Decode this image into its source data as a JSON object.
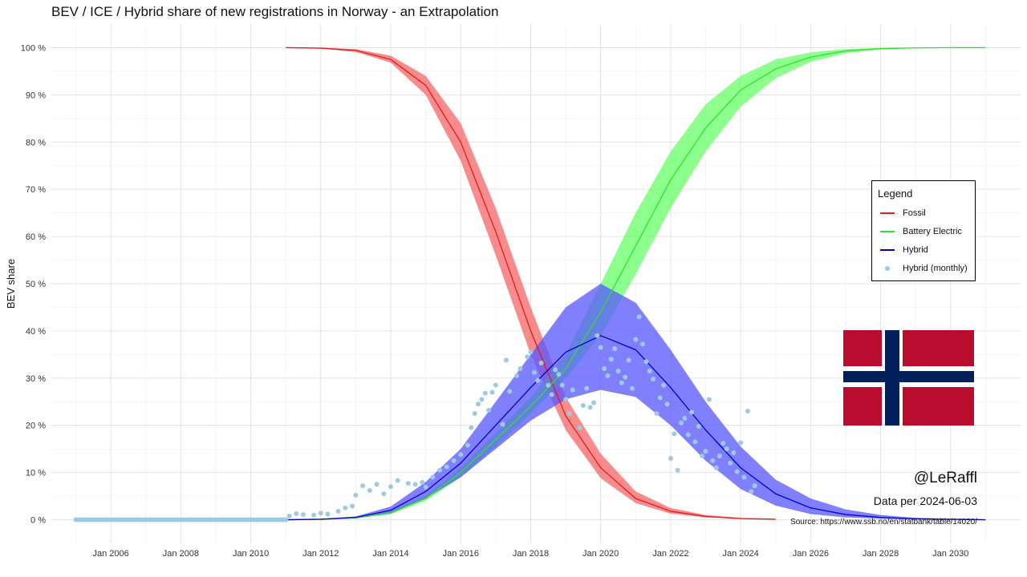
{
  "title": "BEV / ICE / Hybrid share of new registrations in Norway - an Extrapolation",
  "chart_data": {
    "type": "line",
    "title": "BEV / ICE / Hybrid share of new registrations in Norway - an Extrapolation",
    "xlabel": "",
    "ylabel": "BEV share",
    "x_range": [
      2004.3,
      2032.0
    ],
    "y_range": [
      -5,
      105
    ],
    "y_ticks": [
      0,
      10,
      20,
      30,
      40,
      50,
      60,
      70,
      80,
      90,
      100
    ],
    "y_tick_labels": [
      "0 %",
      "10 %",
      "20 %",
      "30 %",
      "40 %",
      "50 %",
      "60 %",
      "70 %",
      "80 %",
      "90 %",
      "100 %"
    ],
    "x_ticks": [
      2006,
      2008,
      2010,
      2012,
      2014,
      2016,
      2018,
      2020,
      2022,
      2024,
      2026,
      2028,
      2030
    ],
    "x_tick_labels": [
      "Jan 2006",
      "Jan 2008",
      "Jan 2010",
      "Jan 2012",
      "Jan 2014",
      "Jan 2016",
      "Jan 2018",
      "Jan 2020",
      "Jan 2022",
      "Jan 2024",
      "Jan 2026",
      "Jan 2028",
      "Jan 2030"
    ],
    "series": [
      {
        "name": "Fossil",
        "color": "#e41a1c",
        "band_color": "#f56666",
        "x": [
          2011,
          2012,
          2013,
          2014,
          2015,
          2016,
          2017,
          2018,
          2019,
          2020,
          2021,
          2022,
          2023,
          2024,
          2025
        ],
        "values": [
          100,
          99.9,
          99.4,
          97.5,
          92,
          80,
          61,
          40,
          22,
          11,
          4.5,
          1.8,
          0.7,
          0.25,
          0.1
        ],
        "band_lower": [
          100,
          99.8,
          99.1,
          96.8,
          90,
          76,
          56,
          35,
          19,
          8.8,
          3.5,
          1.3,
          0.5,
          0.2,
          0.05
        ],
        "band_upper": [
          100,
          100,
          99.7,
          98.3,
          94,
          84,
          66,
          45,
          26,
          14,
          6,
          2.5,
          1,
          0.4,
          0.15
        ]
      },
      {
        "name": "Battery Electric",
        "color": "#33dd33",
        "band_color": "#66ff66",
        "x": [
          2011,
          2012,
          2013,
          2014,
          2015,
          2016,
          2017,
          2018,
          2019,
          2020,
          2021,
          2022,
          2023,
          2024,
          2025,
          2026,
          2027,
          2028,
          2029,
          2030,
          2031
        ],
        "values": [
          0,
          0.1,
          0.4,
          1.5,
          4.5,
          10,
          17,
          24,
          32,
          44,
          58,
          72,
          83,
          91,
          95.5,
          98,
          99.3,
          99.8,
          99.95,
          100,
          100
        ],
        "band_lower": [
          0,
          0.05,
          0.3,
          1.2,
          4,
          9,
          15.5,
          22.5,
          30,
          39,
          52,
          66,
          78,
          87.5,
          93.5,
          97,
          98.8,
          99.6,
          99.9,
          100,
          100
        ],
        "band_upper": [
          0,
          0.15,
          0.5,
          1.8,
          5,
          11,
          18.5,
          26,
          35,
          50,
          65,
          78,
          88,
          94,
          97.5,
          99,
          99.7,
          99.95,
          100,
          100,
          100
        ]
      },
      {
        "name": "Hybrid",
        "color": "#0000cc",
        "band_color": "#5555ff",
        "x": [
          2011,
          2012,
          2013,
          2014,
          2015,
          2016,
          2017,
          2018,
          2019,
          2020,
          2021,
          2022,
          2023,
          2024,
          2025,
          2026,
          2027,
          2028,
          2029,
          2030,
          2031
        ],
        "values": [
          0,
          0.1,
          0.5,
          2,
          6,
          12,
          20,
          28,
          35.5,
          39,
          36,
          28,
          19,
          11,
          5.5,
          2.5,
          1.1,
          0.5,
          0.2,
          0.1,
          0
        ],
        "band_lower": [
          0,
          0.05,
          0.3,
          1.3,
          4.5,
          9,
          15,
          21,
          25.5,
          27.5,
          26,
          20,
          12.5,
          6.5,
          3,
          1.2,
          0.5,
          0.2,
          0.05,
          0,
          0
        ],
        "band_upper": [
          0,
          0.15,
          0.7,
          2.8,
          8,
          15,
          25,
          35,
          45,
          50,
          46,
          36,
          25,
          15.5,
          8.5,
          4.5,
          2.2,
          1,
          0.4,
          0.15,
          0
        ]
      }
    ],
    "scatter": {
      "name": "Hybrid (monthly)",
      "color": "#9ecae1",
      "points": [
        [
          2011.1,
          0.8
        ],
        [
          2011.3,
          1.3
        ],
        [
          2011.5,
          1.1
        ],
        [
          2011.8,
          1.0
        ],
        [
          2012.0,
          1.4
        ],
        [
          2012.2,
          1.2
        ],
        [
          2012.5,
          1.8
        ],
        [
          2012.7,
          2.5
        ],
        [
          2012.9,
          2.9
        ],
        [
          2013.0,
          5.2
        ],
        [
          2013.2,
          7.2
        ],
        [
          2013.4,
          6.2
        ],
        [
          2013.6,
          7.5
        ],
        [
          2013.8,
          5.5
        ],
        [
          2014.0,
          7.0
        ],
        [
          2014.2,
          8.3
        ],
        [
          2014.5,
          7.7
        ],
        [
          2014.7,
          7.5
        ],
        [
          2014.9,
          7.9
        ],
        [
          2015.0,
          6.9
        ],
        [
          2015.2,
          9.0
        ],
        [
          2015.4,
          10.5
        ],
        [
          2015.6,
          11.2
        ],
        [
          2015.8,
          12.5
        ],
        [
          2016.0,
          13.8
        ],
        [
          2016.2,
          15.8
        ],
        [
          2016.3,
          19.5
        ],
        [
          2016.4,
          22.5
        ],
        [
          2016.5,
          24.5
        ],
        [
          2016.6,
          25.5
        ],
        [
          2016.7,
          26.8
        ],
        [
          2016.8,
          23.2
        ],
        [
          2016.9,
          27.0
        ],
        [
          2017.0,
          28.5
        ],
        [
          2017.2,
          20.2
        ],
        [
          2017.3,
          33.8
        ],
        [
          2017.4,
          27.2
        ],
        [
          2017.6,
          30.5
        ],
        [
          2017.7,
          32.0
        ],
        [
          2017.9,
          34.5
        ],
        [
          2018.0,
          35.5
        ],
        [
          2018.1,
          31.2
        ],
        [
          2018.2,
          29.5
        ],
        [
          2018.3,
          33.2
        ],
        [
          2018.5,
          28.5
        ],
        [
          2018.6,
          26.5
        ],
        [
          2018.7,
          31.8
        ],
        [
          2018.8,
          30.8
        ],
        [
          2018.9,
          28.5
        ],
        [
          2019.0,
          25.5
        ],
        [
          2019.1,
          22.5
        ],
        [
          2019.2,
          27.5
        ],
        [
          2019.4,
          19.5
        ],
        [
          2019.5,
          24.2
        ],
        [
          2019.6,
          27.8
        ],
        [
          2019.7,
          23.8
        ],
        [
          2019.8,
          24.8
        ],
        [
          2019.9,
          39.0
        ],
        [
          2020.0,
          36.5
        ],
        [
          2020.1,
          32.0
        ],
        [
          2020.2,
          30.5
        ],
        [
          2020.3,
          34.0
        ],
        [
          2020.4,
          36.2
        ],
        [
          2020.5,
          31.5
        ],
        [
          2020.6,
          29.0
        ],
        [
          2020.7,
          30.2
        ],
        [
          2020.8,
          33.8
        ],
        [
          2020.9,
          27.8
        ],
        [
          2021.0,
          38.2
        ],
        [
          2021.1,
          43.0
        ],
        [
          2021.2,
          37.2
        ],
        [
          2021.3,
          33.5
        ],
        [
          2021.4,
          31.5
        ],
        [
          2021.5,
          29.8
        ],
        [
          2021.6,
          22.5
        ],
        [
          2021.7,
          25.8
        ],
        [
          2021.8,
          28.5
        ],
        [
          2021.9,
          24.5
        ],
        [
          2022.0,
          13.0
        ],
        [
          2022.1,
          18.2
        ],
        [
          2022.2,
          10.5
        ],
        [
          2022.3,
          20.5
        ],
        [
          2022.4,
          21.5
        ],
        [
          2022.5,
          18.0
        ],
        [
          2022.6,
          22.8
        ],
        [
          2022.7,
          16.5
        ],
        [
          2022.8,
          19.8
        ],
        [
          2022.9,
          13.5
        ],
        [
          2023.0,
          14.5
        ],
        [
          2023.1,
          25.5
        ],
        [
          2023.2,
          12.5
        ],
        [
          2023.3,
          11.0
        ],
        [
          2023.4,
          13.5
        ],
        [
          2023.5,
          16.2
        ],
        [
          2023.6,
          15.0
        ],
        [
          2023.7,
          12.0
        ],
        [
          2023.8,
          14.2
        ],
        [
          2023.9,
          10.2
        ],
        [
          2024.0,
          16.3
        ],
        [
          2024.1,
          9.0
        ],
        [
          2024.2,
          23.0
        ],
        [
          2024.3,
          6.0
        ],
        [
          2024.4,
          7.2
        ]
      ],
      "baseline": {
        "x_start": 2005.0,
        "x_end": 2011.0,
        "value": 0
      }
    }
  },
  "legend": {
    "title": "Legend",
    "items": [
      {
        "label": "Fossil",
        "color": "#e41a1c",
        "kind": "line"
      },
      {
        "label": "Battery Electric",
        "color": "#33dd33",
        "kind": "line"
      },
      {
        "label": "Hybrid",
        "color": "#0000cc",
        "kind": "line"
      },
      {
        "label": "Hybrid (monthly)",
        "color": "#9ecae1",
        "kind": "point"
      }
    ]
  },
  "flag": {
    "name": "Norway",
    "red": "#ba0c2f",
    "white": "#ffffff",
    "blue": "#00205b"
  },
  "annotations": {
    "handle": "@LeRaffl",
    "data_as_of": "Data per 2024-06-03",
    "source": "Source: https://www.ssb.no/en/statbank/table/14020/"
  }
}
